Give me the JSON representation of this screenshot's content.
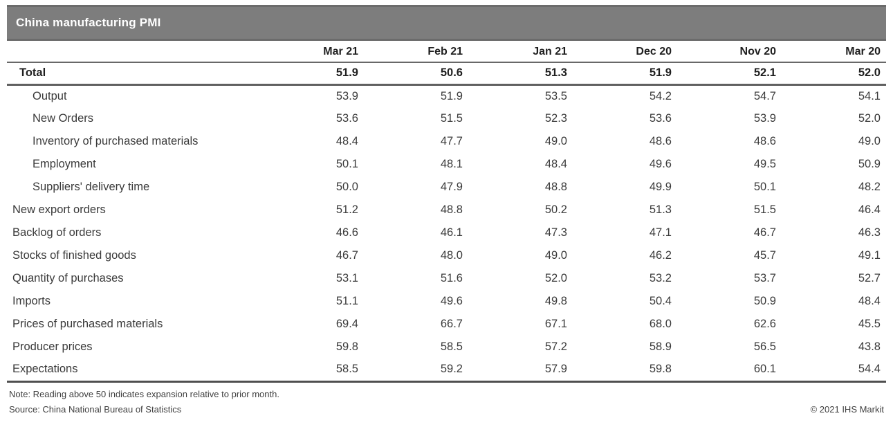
{
  "title": "China manufacturing PMI",
  "chart_data": {
    "type": "table",
    "title": "China manufacturing PMI",
    "columns": [
      "Mar 21",
      "Feb 21",
      "Jan 21",
      "Dec 20",
      "Nov 20",
      "Mar 20"
    ],
    "rows": [
      {
        "label": "Total",
        "indent": 1,
        "emphasis": true,
        "values": [
          "51.9",
          "50.6",
          "51.3",
          "51.9",
          "52.1",
          "52.0"
        ]
      },
      {
        "label": "Output",
        "indent": 2,
        "emphasis": false,
        "values": [
          "53.9",
          "51.9",
          "53.5",
          "54.2",
          "54.7",
          "54.1"
        ]
      },
      {
        "label": "New Orders",
        "indent": 2,
        "emphasis": false,
        "values": [
          "53.6",
          "51.5",
          "52.3",
          "53.6",
          "53.9",
          "52.0"
        ]
      },
      {
        "label": "Inventory of purchased materials",
        "indent": 2,
        "emphasis": false,
        "values": [
          "48.4",
          "47.7",
          "49.0",
          "48.6",
          "48.6",
          "49.0"
        ]
      },
      {
        "label": "Employment",
        "indent": 2,
        "emphasis": false,
        "values": [
          "50.1",
          "48.1",
          "48.4",
          "49.6",
          "49.5",
          "50.9"
        ]
      },
      {
        "label": "Suppliers' delivery time",
        "indent": 2,
        "emphasis": false,
        "values": [
          "50.0",
          "47.9",
          "48.8",
          "49.9",
          "50.1",
          "48.2"
        ]
      },
      {
        "label": "New export orders",
        "indent": 0,
        "emphasis": false,
        "values": [
          "51.2",
          "48.8",
          "50.2",
          "51.3",
          "51.5",
          "46.4"
        ]
      },
      {
        "label": "Backlog of orders",
        "indent": 0,
        "emphasis": false,
        "values": [
          "46.6",
          "46.1",
          "47.3",
          "47.1",
          "46.7",
          "46.3"
        ]
      },
      {
        "label": "Stocks of finished goods",
        "indent": 0,
        "emphasis": false,
        "values": [
          "46.7",
          "48.0",
          "49.0",
          "46.2",
          "45.7",
          "49.1"
        ]
      },
      {
        "label": "Quantity of purchases",
        "indent": 0,
        "emphasis": false,
        "values": [
          "53.1",
          "51.6",
          "52.0",
          "53.2",
          "53.7",
          "52.7"
        ]
      },
      {
        "label": "Imports",
        "indent": 0,
        "emphasis": false,
        "values": [
          "51.1",
          "49.6",
          "49.8",
          "50.4",
          "50.9",
          "48.4"
        ]
      },
      {
        "label": "Prices of purchased materials",
        "indent": 0,
        "emphasis": false,
        "values": [
          "69.4",
          "66.7",
          "67.1",
          "68.0",
          "62.6",
          "45.5"
        ]
      },
      {
        "label": "Producer prices",
        "indent": 0,
        "emphasis": false,
        "values": [
          "59.8",
          "58.5",
          "57.2",
          "58.9",
          "56.5",
          "43.8"
        ]
      },
      {
        "label": "Expectations",
        "indent": 0,
        "emphasis": false,
        "values": [
          "58.5",
          "59.2",
          "57.9",
          "59.8",
          "60.1",
          "54.4"
        ]
      }
    ]
  },
  "footer": {
    "note": "Note: Reading above 50 indicates expansion relative to prior month.",
    "source": "Source: China National Bureau of Statistics",
    "copyright": "© 2021 IHS Markit"
  },
  "colors": {
    "title_bar_bg": "#7d7d7d",
    "title_bar_edge": "#6b6b6b",
    "title_text": "#ffffff",
    "rule_mid": "#686868",
    "rule_dark": "#4f4f4f",
    "text_body": "#3a3a3a",
    "text_strong": "#1f1f1f",
    "footer_text": "#404040"
  }
}
